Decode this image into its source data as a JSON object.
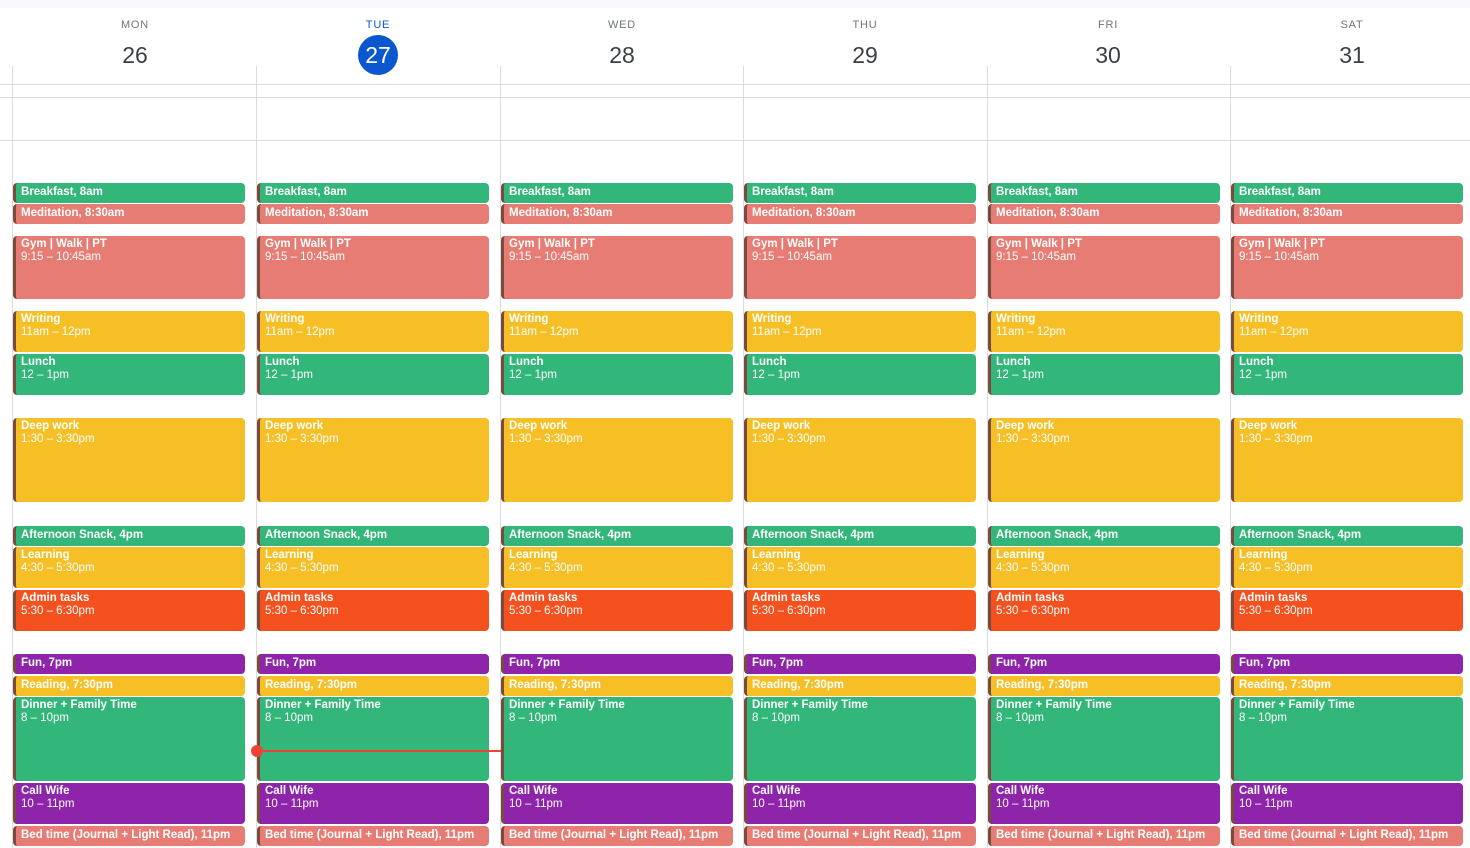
{
  "days": [
    {
      "dow": "MON",
      "num": "26"
    },
    {
      "dow": "TUE",
      "num": "27",
      "today": true
    },
    {
      "dow": "WED",
      "num": "28"
    },
    {
      "dow": "THU",
      "num": "29"
    },
    {
      "dow": "FRI",
      "num": "30"
    },
    {
      "dow": "SAT",
      "num": "31"
    }
  ],
  "events": [
    {
      "title": "Breakfast, 8am",
      "time": "",
      "color": "green"
    },
    {
      "title": "Meditation, 8:30am",
      "time": "",
      "color": "flamingo"
    },
    {
      "title": "Gym | Walk | PT",
      "time": "9:15 – 10:45am",
      "color": "flamingo"
    },
    {
      "title": "Writing",
      "time": "11am – 12pm",
      "color": "banana"
    },
    {
      "title": "Lunch",
      "time": "12 – 1pm",
      "color": "green"
    },
    {
      "title": "Deep work",
      "time": "1:30 – 3:30pm",
      "color": "banana"
    },
    {
      "title": "Afternoon Snack, 4pm",
      "time": "",
      "color": "green"
    },
    {
      "title": "Learning",
      "time": "4:30 – 5:30pm",
      "color": "banana"
    },
    {
      "title": "Admin tasks",
      "time": "5:30 – 6:30pm",
      "color": "tangerine"
    },
    {
      "title": "Fun, 7pm",
      "time": "",
      "color": "grape"
    },
    {
      "title": "Reading, 7:30pm",
      "time": "",
      "color": "banana"
    },
    {
      "title": "Dinner + Family Time",
      "time": "8 – 10pm",
      "color": "green"
    },
    {
      "title": "Call Wife",
      "time": "10 – 11pm",
      "color": "grape"
    },
    {
      "title": "Bed time (Journal + Light Read), 11pm",
      "time": "",
      "color": "flamingo"
    }
  ],
  "colors": {
    "green": "#33b679",
    "flamingo": "#e67c73",
    "banana": "#f6bf26",
    "tangerine": "#f4511e",
    "grape": "#8e24aa",
    "today_accent": "#0b57d0",
    "now_indicator": "#ea4335"
  }
}
